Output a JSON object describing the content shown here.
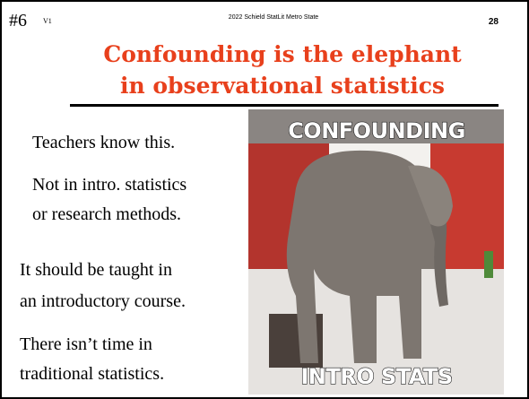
{
  "header": {
    "slide_number": "#6",
    "version": "V1",
    "footer_text": "2022 Schield StatLit Metro State",
    "page_number": "28"
  },
  "title": {
    "lines": [
      "Confounding is the elephant",
      "in observational statistics"
    ]
  },
  "body": {
    "paragraphs": [
      [
        "Teachers know this."
      ],
      [
        "Not in intro. statistics",
        "or research methods."
      ],
      [
        "It should be taught in",
        "an introductory course."
      ],
      [
        "There isn’t time in",
        "traditional statistics."
      ]
    ]
  },
  "image": {
    "top_caption": "CONFOUNDING",
    "bottom_caption": "INTRO STATS"
  }
}
